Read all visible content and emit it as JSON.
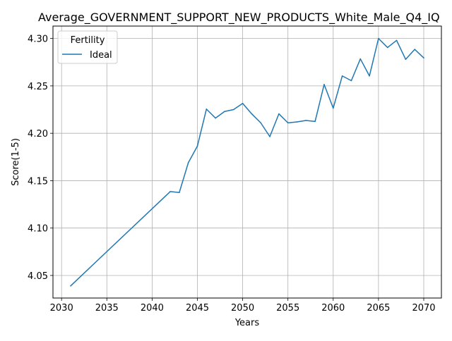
{
  "chart_data": {
    "type": "line",
    "title": "Average_GOVERNMENT_SUPPORT_NEW_PRODUCTS_White_Male_Q4_IQ",
    "xlabel": "Years",
    "ylabel": "Score(1-5)",
    "xlim": [
      2029.05,
      2071.95
    ],
    "ylim": [
      4.0262,
      4.3131
    ],
    "grid": true,
    "legend": {
      "title": "Fertility",
      "placement": "top-left"
    },
    "x_ticks": [
      2030,
      2035,
      2040,
      2045,
      2050,
      2055,
      2060,
      2065,
      2070
    ],
    "y_ticks": [
      4.05,
      4.1,
      4.15,
      4.2,
      4.25,
      4.3
    ],
    "x_tick_labels": [
      "2030",
      "2035",
      "2040",
      "2045",
      "2050",
      "2055",
      "2060",
      "2065",
      "2070"
    ],
    "y_tick_labels": [
      "4.05",
      "4.10",
      "4.15",
      "4.20",
      "4.25",
      "4.30"
    ],
    "series": [
      {
        "name": "Ideal",
        "color": "#1f77b4",
        "x": [
          2031,
          2042,
          2043,
          2044,
          2045,
          2046,
          2047,
          2048,
          2049,
          2050,
          2051,
          2052,
          2053,
          2054,
          2055,
          2056,
          2057,
          2058,
          2059,
          2060,
          2061,
          2062,
          2063,
          2064,
          2065,
          2066,
          2067,
          2068,
          2069,
          2070
        ],
        "values": [
          4.039,
          4.1385,
          4.1375,
          4.169,
          4.1865,
          4.2255,
          4.216,
          4.223,
          4.225,
          4.2315,
          4.2205,
          4.211,
          4.1965,
          4.2205,
          4.211,
          4.212,
          4.2135,
          4.2125,
          4.2515,
          4.2265,
          4.2605,
          4.2555,
          4.2785,
          4.2605,
          4.3,
          4.2905,
          4.298,
          4.278,
          4.2885,
          4.2795
        ]
      }
    ]
  }
}
